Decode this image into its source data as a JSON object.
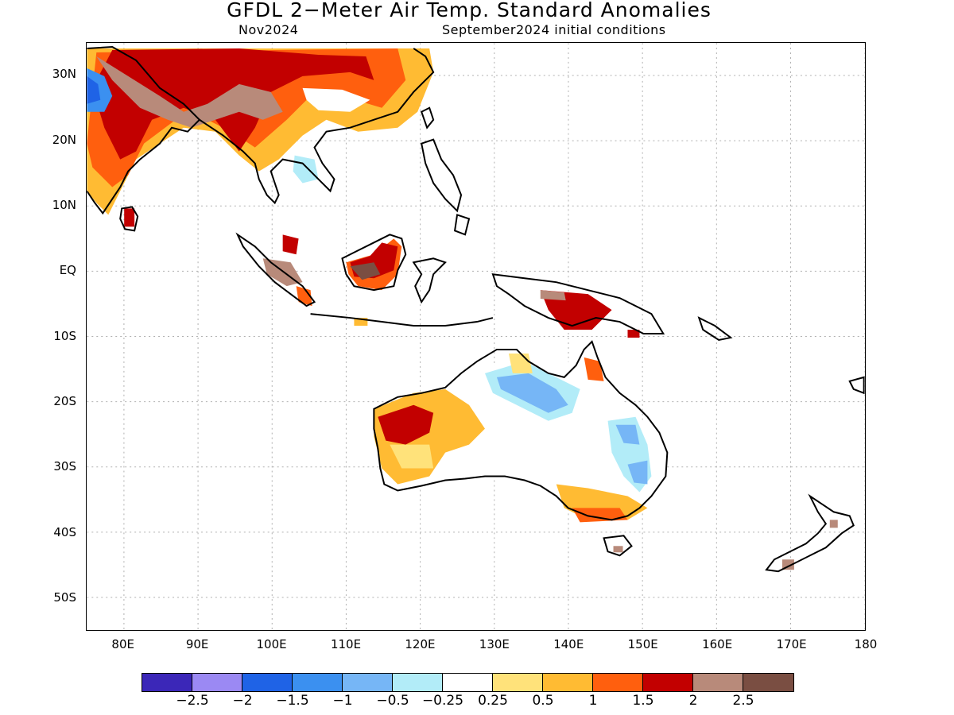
{
  "header": {
    "title": "GFDL 2−Meter Air Temp. Standard Anomalies",
    "month": "Nov2024",
    "initial_conditions": "September2024 initial conditions"
  },
  "axes": {
    "lat_labels": [
      "30N",
      "20N",
      "10N",
      "EQ",
      "10S",
      "20S",
      "30S",
      "40S",
      "50S"
    ],
    "lat_values": [
      30,
      20,
      10,
      0,
      -10,
      -20,
      -30,
      -40,
      -50
    ],
    "lon_labels": [
      "80E",
      "90E",
      "100E",
      "110E",
      "120E",
      "130E",
      "140E",
      "150E",
      "160E",
      "170E",
      "180"
    ],
    "lon_values": [
      80,
      90,
      100,
      110,
      120,
      130,
      140,
      150,
      160,
      170,
      180
    ],
    "lon_range": [
      75,
      180
    ],
    "lat_range": [
      -55,
      35
    ]
  },
  "colorbar": {
    "colors": [
      "#3b27b8",
      "#9b89f3",
      "#1f63e6",
      "#3b90f0",
      "#76b6f6",
      "#b2ecf8",
      "#ffffff",
      "#ffe27a",
      "#ffbb33",
      "#ff5f0e",
      "#c20000",
      "#b88a7a",
      "#7a4e42"
    ],
    "tick_labels": [
      "−2.5",
      "−2",
      "−1.5",
      "−1",
      "−0.5",
      "−0.25",
      "0.25",
      "0.5",
      "1",
      "1.5",
      "2",
      "2.5"
    ]
  }
}
